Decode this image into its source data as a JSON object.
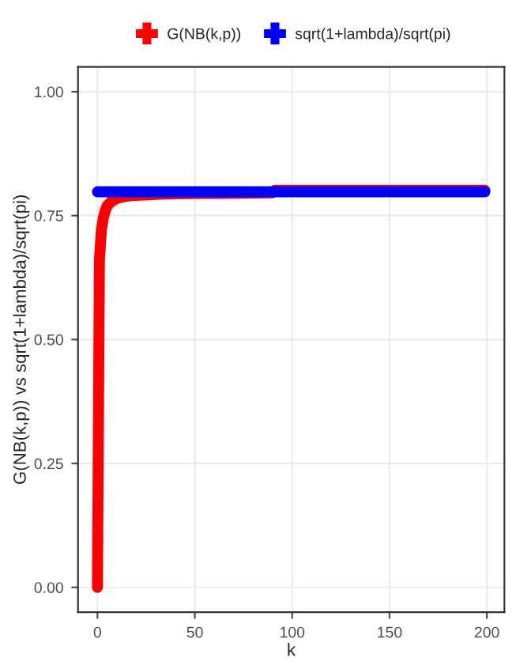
{
  "chart_data": {
    "type": "line",
    "xlabel": "k",
    "ylabel": "G(NB(k,p)) vs sqrt(1+lambda)/sqrt(pi)",
    "x": [
      0,
      1,
      2,
      3,
      4,
      5,
      7,
      10,
      15,
      20,
      30,
      40,
      60,
      90,
      91,
      120,
      160,
      199
    ],
    "series": [
      {
        "name": "G(NB(k,p))",
        "color": "#ff0000",
        "values": [
          0,
          0.66,
          0.72,
          0.745,
          0.76,
          0.77,
          0.778,
          0.785,
          0.789,
          0.791,
          0.793,
          0.794,
          0.795,
          0.796,
          0.801,
          0.801,
          0.801,
          0.801
        ]
      },
      {
        "name": "sqrt(1+lambda)/sqrt(pi)",
        "color": "#0000ff",
        "values": [
          0.798,
          0.798,
          0.798,
          0.798,
          0.798,
          0.798,
          0.798,
          0.798,
          0.798,
          0.798,
          0.798,
          0.798,
          0.798,
          0.798,
          0.798,
          0.798,
          0.798,
          0.798
        ]
      }
    ],
    "xlim": [
      -10,
      209
    ],
    "ylim": [
      -0.05,
      1.05
    ],
    "xticks": [
      0,
      50,
      100,
      150,
      200
    ],
    "yticks": [
      {
        "value": 0,
        "label": "0.00"
      },
      {
        "value": 0.25,
        "label": "0.25"
      },
      {
        "value": 0.5,
        "label": "0.50"
      },
      {
        "value": 0.75,
        "label": "0.75"
      },
      {
        "value": 1,
        "label": "1.00"
      }
    ],
    "grid": true,
    "legend": "top",
    "line_style": "solid"
  }
}
